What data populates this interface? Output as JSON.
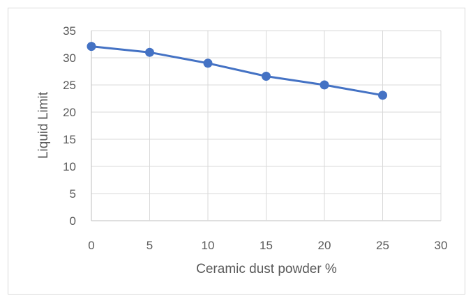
{
  "chart_data": {
    "type": "scatter",
    "xlabel": "Ceramic dust powder %",
    "ylabel": "Liquid Limit",
    "xlim": [
      0,
      30
    ],
    "ylim": [
      0,
      35
    ],
    "x_ticks": [
      0,
      5,
      10,
      15,
      20,
      25,
      30
    ],
    "y_ticks": [
      0,
      5,
      10,
      15,
      20,
      25,
      30,
      35
    ],
    "grid": true,
    "legend": "none",
    "series": [
      {
        "x": [
          0,
          5,
          10,
          15,
          20,
          25
        ],
        "y": [
          32.1,
          31.0,
          29.0,
          26.6,
          25.0,
          23.1
        ],
        "color": "#4472c4",
        "markers": true,
        "line": true
      }
    ]
  }
}
